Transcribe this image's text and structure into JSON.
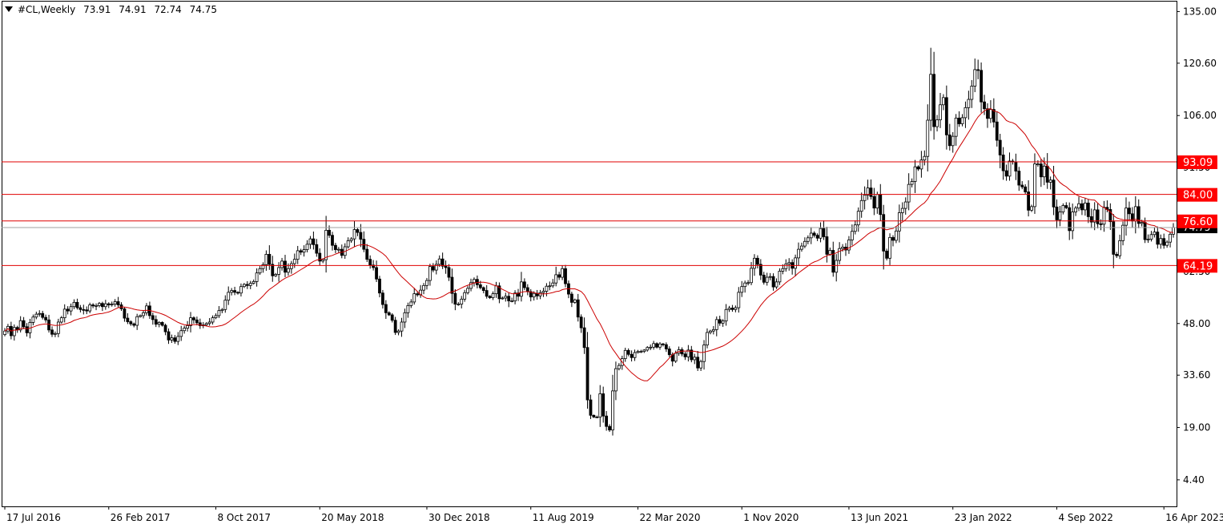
{
  "header": {
    "symbol_timeframe": "#CL,Weekly",
    "open": "73.91",
    "high": "74.91",
    "low": "72.74",
    "close": "74.75"
  },
  "colors": {
    "candle": "#000000",
    "moving_average": "#cc0000",
    "level_line": "#e00000",
    "level_label_bg": "#ff0000",
    "level_label_text": "#ffffff",
    "current_price_line": "#a0a0a0",
    "current_price_label_bg": "#000000"
  },
  "chart_data": {
    "type": "candlestick",
    "title": "",
    "xlabel": "",
    "ylabel": "",
    "ylim": [
      -3.0,
      138.0
    ],
    "y_ticks": [
      "135.00",
      "120.60",
      "106.00",
      "91.50",
      "77.00",
      "62.50",
      "48.00",
      "33.60",
      "19.00",
      "4.40"
    ],
    "x_ticks": [
      "17 Jul 2016",
      "26 Feb 2017",
      "8 Oct 2017",
      "20 May 2018",
      "30 Dec 2018",
      "11 Aug 2019",
      "22 Mar 2020",
      "1 Nov 2020",
      "13 Jun 2021",
      "23 Jan 2022",
      "4 Sep 2022",
      "16 Apr 2023"
    ],
    "horizontal_levels": [
      93.09,
      84.0,
      76.6,
      64.19
    ],
    "level_labels": [
      "93.09",
      "84.00",
      "76.60",
      "64.19"
    ],
    "current_price": 74.75,
    "current_price_label": "74.75",
    "series": [
      {
        "name": "",
        "type": "close",
        "values": [
          45.9,
          47.2,
          44.6,
          46.9,
          46.2,
          48.8,
          47.1,
          45.4,
          48.3,
          49.8,
          50.6,
          50.8,
          49.7,
          49.0,
          46.2,
          45.0,
          45.2,
          48.4,
          49.6,
          52.0,
          51.5,
          52.7,
          53.9,
          52.4,
          51.9,
          51.8,
          51.5,
          53.2,
          52.9,
          53.0,
          53.6,
          52.7,
          53.5,
          53.2,
          53.4,
          54.1,
          53.2,
          52.1,
          49.5,
          48.5,
          47.9,
          47.5,
          49.9,
          50.2,
          51.0,
          52.9,
          50.2,
          49.1,
          47.8,
          48.3,
          47.5,
          45.7,
          43.4,
          44.0,
          43.0,
          44.4,
          46.0,
          46.7,
          47.4,
          49.6,
          49.0,
          48.2,
          47.4,
          47.6,
          48.0,
          48.4,
          49.6,
          50.2,
          51.6,
          51.9,
          54.5,
          56.7,
          57.2,
          56.7,
          56.5,
          58.3,
          58.9,
          58.6,
          59.2,
          59.7,
          62.1,
          63.3,
          64.4,
          67.3,
          64.5,
          61.3,
          61.7,
          63.6,
          65.4,
          62.3,
          63.3,
          64.7,
          65.9,
          68.3,
          67.9,
          68.6,
          70.1,
          71.6,
          70.0,
          67.6,
          65.4,
          65.8,
          74.0,
          72.6,
          69.8,
          68.6,
          68.7,
          67.0,
          69.4,
          71.1,
          71.6,
          74.2,
          73.4,
          71.5,
          68.7,
          65.9,
          64.3,
          63.6,
          60.4,
          56.5,
          53.3,
          51.0,
          50.4,
          48.9,
          45.5,
          45.9,
          48.4,
          51.0,
          53.0,
          54.0,
          56.3,
          56.0,
          57.3,
          58.6,
          60.0,
          63.9,
          62.9,
          64.5,
          66.0,
          64.0,
          63.6,
          60.9,
          56.4,
          53.4,
          53.4,
          54.8,
          56.6,
          57.8,
          59.4,
          60.3,
          58.8,
          58.0,
          57.2,
          55.6,
          55.2,
          56.3,
          58.5,
          54.9,
          55.1,
          55.6,
          54.3,
          54.3,
          56.5,
          55.6,
          59.6,
          58.0,
          56.9,
          55.4,
          56.4,
          55.7,
          56.6,
          57.0,
          58.4,
          58.5,
          59.3,
          61.6,
          60.9,
          63.3,
          59.1,
          56.2,
          53.9,
          54.6,
          49.8,
          46.8,
          41.3,
          26.7,
          22.4,
          21.9,
          21.9,
          28.4,
          22.2,
          19.3,
          18.3,
          29.2,
          35.4,
          36.3,
          38.2,
          40.5,
          39.4,
          38.5,
          39.9,
          40.2,
          40.2,
          40.6,
          41.3,
          41.4,
          42.4,
          41.4,
          42.3,
          42.1,
          40.9,
          39.3,
          37.5,
          39.7,
          40.7,
          39.5,
          38.7,
          40.6,
          37.9,
          38.6,
          35.6,
          37.4,
          42.0,
          45.5,
          45.9,
          46.3,
          49.1,
          48.1,
          48.7,
          51.9,
          52.3,
          51.9,
          52.4,
          56.7,
          58.3,
          59.3,
          59.4,
          63.4,
          66.2,
          64.5,
          61.5,
          59.5,
          60.9,
          61.1,
          58.2,
          59.6,
          62.6,
          63.3,
          64.6,
          65.0,
          63.4,
          66.3,
          68.7,
          69.6,
          70.9,
          71.9,
          73.2,
          72.6,
          71.8,
          74.5,
          72.2,
          67.3,
          68.4,
          62.3,
          65.6,
          68.9,
          69.3,
          68.5,
          71.3,
          73.7,
          75.5,
          79.3,
          82.3,
          83.8,
          85.8,
          83.4,
          80.2,
          84.0,
          78.4,
          68.2,
          66.2,
          72.0,
          71.2,
          73.8,
          78.9,
          80.1,
          81.9,
          86.8,
          87.6,
          91.7,
          91.1,
          93.6,
          94.6,
          104.7,
          117.5,
          102.9,
          104.8,
          109.0,
          111.0,
          100.6,
          97.6,
          100.2,
          105.3,
          103.7,
          105.4,
          108.2,
          110.5,
          114.2,
          118.8,
          118.6,
          109.8,
          107.9,
          105.2,
          107.7,
          104.2,
          99.1,
          95.0,
          90.6,
          89.1,
          93.3,
          93.1,
          90.5,
          86.6,
          86.1,
          84.7,
          79.6,
          80.6,
          92.5,
          92.5,
          88.9,
          91.9,
          87.4,
          88.0,
          80.5,
          76.9,
          79.1,
          80.9,
          80.3,
          73.9,
          79.1,
          80.2,
          81.4,
          79.7,
          81.6,
          77.8,
          76.3,
          79.7,
          75.8,
          75.7,
          80.4,
          79.8,
          76.4,
          67.3,
          66.9,
          71.1,
          75.4,
          80.2,
          78.6,
          76.6,
          80.6,
          75.9,
          76.2,
          71.4,
          71.5,
          72.8,
          73.5,
          70.1,
          71.7,
          69.8,
          70.7,
          72.9,
          74.8
        ]
      }
    ]
  }
}
